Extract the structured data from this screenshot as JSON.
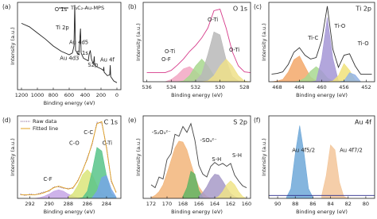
{
  "chart_data": [
    {
      "type": "line",
      "label": "(a)",
      "xlabel": "Binding energy (eV)",
      "ylabel": "Intensity (a.u.)",
      "legend": "upper right",
      "x": [
        1200,
        1100,
        1000,
        900,
        800,
        700,
        600,
        560,
        540,
        530,
        520,
        480,
        465,
        458,
        450,
        420,
        360,
        350,
        335,
        320,
        300,
        290,
        285,
        280,
        250,
        200,
        170,
        165,
        160,
        120,
        90,
        84,
        78,
        40,
        0
      ],
      "xlim": [
        1250,
        -50
      ],
      "xticks": [
        1200,
        1000,
        800,
        600,
        400,
        200,
        0
      ],
      "ylim": [
        0,
        100
      ],
      "series": [
        {
          "name": "Ti₃C₂-Au-MPS",
          "color": "#222222",
          "values": [
            76,
            72,
            65,
            58,
            50,
            44,
            40,
            42,
            50,
            97,
            45,
            40,
            60,
            70,
            42,
            36,
            33,
            40,
            45,
            35,
            30,
            33,
            38,
            28,
            26,
            24,
            22,
            26,
            20,
            16,
            17,
            28,
            15,
            10,
            8
          ]
        }
      ],
      "annotations": [
        "O 1s",
        "Ti 2p",
        "Au 4d5",
        "Au 4d3",
        "C 1s",
        "S2p",
        "Au 4f"
      ]
    },
    {
      "type": "line",
      "label": "(b)",
      "title": "O 1s",
      "xlabel": "Binding energy (eV)",
      "ylabel": "Intensity (a.u.)",
      "x": [
        536,
        535.5,
        535,
        534.5,
        534,
        533.5,
        533,
        532.5,
        532,
        531.5,
        531,
        530.5,
        530,
        529.5,
        529,
        528.5,
        528,
        527.5
      ],
      "xlim": [
        536.3,
        527.5
      ],
      "xticks": [
        536,
        534,
        532,
        530,
        528
      ],
      "ylim": [
        0,
        105
      ],
      "series": [
        {
          "color": "#f2a7c3",
          "fill": true,
          "values": [
            null,
            null,
            null,
            0,
            3,
            9,
            17,
            20,
            14,
            6,
            1,
            0,
            null,
            null,
            null,
            null,
            null,
            null
          ]
        },
        {
          "color": "#a8d88e",
          "fill": true,
          "values": [
            null,
            null,
            null,
            null,
            null,
            0,
            1,
            8,
            21,
            30,
            21,
            8,
            1,
            0,
            null,
            null,
            null,
            null
          ]
        },
        {
          "color": "#b8b8b8",
          "fill": true,
          "values": [
            null,
            null,
            null,
            null,
            null,
            null,
            null,
            0,
            1,
            10,
            36,
            66,
            62,
            29,
            7,
            1,
            0,
            null
          ]
        },
        {
          "color": "#efe08a",
          "fill": true,
          "values": [
            null,
            null,
            null,
            null,
            null,
            null,
            null,
            null,
            null,
            0,
            1,
            8,
            21,
            30,
            21,
            8,
            1,
            0
          ]
        },
        {
          "color": "#d63a8a",
          "values": [
            12,
            12,
            12,
            12,
            15,
            22,
            30,
            40,
            48,
            58,
            71,
            94,
            96,
            71,
            40,
            21,
            13,
            12
          ]
        }
      ],
      "annotations": [
        "O-Ti",
        "O-Ti",
        "O-Ti",
        "O-F"
      ]
    },
    {
      "type": "line",
      "label": "(c)",
      "title": "Ti 2p",
      "xlabel": "Binding energy (eV)",
      "ylabel": "Intensity (a.u.)",
      "x": [
        469,
        468,
        467,
        466,
        465,
        464,
        463,
        462,
        461,
        460,
        459,
        458,
        457,
        456,
        455,
        454,
        453,
        452,
        451
      ],
      "xlim": [
        469.5,
        450.5
      ],
      "xticks": [
        468,
        464,
        460,
        456,
        452
      ],
      "ylim": [
        0,
        105
      ],
      "series": [
        {
          "color": "#f3a86a",
          "fill": true,
          "values": [
            0,
            1,
            3,
            13,
            29,
            34,
            20,
            6,
            1,
            0,
            null,
            null,
            null,
            null,
            null,
            null,
            null,
            null,
            null
          ]
        },
        {
          "color": "#a8d890",
          "fill": true,
          "values": [
            null,
            null,
            null,
            null,
            0,
            1,
            5,
            14,
            20,
            14,
            5,
            1,
            0,
            null,
            null,
            null,
            null,
            null,
            null
          ]
        },
        {
          "color": "#a497d6",
          "fill": true,
          "values": [
            null,
            null,
            null,
            null,
            null,
            null,
            null,
            0,
            1,
            31,
            85,
            31,
            1,
            0,
            null,
            null,
            null,
            null,
            null
          ]
        },
        {
          "color": "#f0e27a",
          "fill": true,
          "values": [
            null,
            null,
            null,
            null,
            null,
            null,
            null,
            null,
            null,
            null,
            0,
            1,
            8,
            24,
            15,
            2,
            0,
            null,
            null
          ]
        },
        {
          "color": "#93b4e4",
          "fill": true,
          "values": [
            null,
            null,
            null,
            null,
            null,
            null,
            null,
            null,
            null,
            null,
            null,
            null,
            0,
            1,
            12,
            9,
            0,
            null,
            null
          ]
        },
        {
          "color": "#333333",
          "values": [
            10,
            11,
            13,
            23,
            39,
            45,
            35,
            30,
            32,
            55,
            100,
            43,
            19,
            35,
            37,
            21,
            10,
            10,
            10
          ]
        }
      ],
      "annotations": [
        "Ti-O",
        "Ti-C",
        "Ti-O"
      ]
    },
    {
      "type": "line",
      "label": "(d)",
      "title": "C 1s",
      "xlabel": "Binding energy (eV)",
      "ylabel": "Intensity (a.u.)",
      "legend": "upper left",
      "x": [
        293,
        292.5,
        292,
        291.5,
        291,
        290.5,
        290,
        289.5,
        289,
        288.5,
        288,
        287.5,
        287,
        286.5,
        286,
        285.5,
        285,
        284.5,
        284,
        283.5,
        283
      ],
      "xlim": [
        293.3,
        282.5
      ],
      "xticks": [
        292,
        290,
        288,
        286,
        284
      ],
      "ylim": [
        0,
        115
      ],
      "series": [
        {
          "color": "#c6a6e6",
          "fill": true,
          "values": [
            null,
            null,
            null,
            0,
            1,
            3,
            6,
            10,
            12,
            10,
            6,
            3,
            1,
            0,
            null,
            null,
            null,
            null,
            null,
            null,
            null
          ]
        },
        {
          "color": "#dbe57a",
          "fill": true,
          "values": [
            null,
            null,
            null,
            null,
            null,
            null,
            null,
            null,
            null,
            null,
            2,
            7,
            18,
            33,
            40,
            33,
            18,
            7,
            2,
            0,
            null
          ]
        },
        {
          "color": "#58c48a",
          "fill": true,
          "values": [
            null,
            null,
            null,
            null,
            null,
            null,
            null,
            null,
            null,
            null,
            null,
            null,
            0,
            1,
            10,
            38,
            71,
            66,
            31,
            7,
            1
          ]
        },
        {
          "color": "#76a6e6",
          "fill": true,
          "values": [
            null,
            null,
            null,
            null,
            null,
            null,
            null,
            null,
            null,
            null,
            null,
            null,
            null,
            null,
            null,
            1,
            10,
            29,
            32,
            13,
            2
          ]
        },
        {
          "name": "Raw data",
          "color": "#6a3d7a",
          "dash": "dotted",
          "values": [
            6,
            4,
            6,
            5,
            7,
            9,
            10,
            16,
            16,
            14,
            14,
            14,
            25,
            38,
            57,
            75,
            106,
            105,
            72,
            23,
            9
          ]
        },
        {
          "name": "Fitted line",
          "color": "#e0a020",
          "values": [
            5,
            5,
            5,
            5,
            6,
            8,
            11,
            15,
            17,
            15,
            13,
            15,
            24,
            39,
            55,
            77,
            104,
            107,
            70,
            25,
            8
          ]
        }
      ],
      "annotations": [
        "C-F",
        "C-O",
        "C-C",
        "C-Ti"
      ]
    },
    {
      "type": "line",
      "label": "(e)",
      "title": "S 2p",
      "xlabel": "Binding energy (eV)",
      "ylabel": "Intensity (a.u.)",
      "x": [
        172,
        171.5,
        171,
        170.5,
        170,
        169.5,
        169,
        168.5,
        168,
        167.5,
        167,
        166.5,
        166,
        165.5,
        165,
        164.5,
        164,
        163.5,
        163,
        162.5,
        162,
        161.5,
        161,
        160.5,
        160
      ],
      "xlim": [
        173,
        159.5
      ],
      "xticks": [
        172,
        170,
        168,
        166,
        164,
        162,
        160
      ],
      "ylim": [
        0,
        85
      ],
      "series": [
        {
          "color": "#f2b57a",
          "fill": true,
          "values": [
            1,
            3,
            7,
            14,
            26,
            39,
            52,
            59,
            58,
            50,
            36,
            23,
            12,
            6,
            2,
            0,
            null,
            null,
            null,
            null,
            null,
            null,
            null,
            null,
            null
          ]
        },
        {
          "color": "#62b464",
          "fill": true,
          "values": [
            null,
            null,
            null,
            null,
            null,
            null,
            null,
            null,
            2,
            11,
            28,
            25,
            8,
            1,
            0,
            null,
            null,
            null,
            null,
            null,
            null,
            null,
            null,
            null,
            null
          ]
        },
        {
          "color": "#a79ac8",
          "fill": true,
          "values": [
            null,
            null,
            null,
            null,
            null,
            null,
            null,
            null,
            null,
            null,
            null,
            null,
            2,
            6,
            12,
            20,
            25,
            24,
            18,
            11,
            5,
            2,
            0,
            null,
            null
          ]
        },
        {
          "color": "#f0e488",
          "fill": true,
          "values": [
            null,
            null,
            null,
            null,
            null,
            null,
            null,
            null,
            null,
            null,
            null,
            null,
            null,
            null,
            null,
            null,
            0,
            2,
            7,
            14,
            18,
            14,
            7,
            2,
            0
          ]
        },
        {
          "color": "#444444",
          "values": [
            14,
            11,
            22,
            20,
            40,
            46,
            66,
            64,
            74,
            68,
            77,
            60,
            34,
            25,
            22,
            33,
            37,
            34,
            36,
            33,
            36,
            24,
            18,
            13,
            11
          ]
        }
      ],
      "annotations": [
        "-S₂O₃²⁻",
        "-SO₄²⁻",
        "S-H",
        "S-H"
      ]
    },
    {
      "type": "line",
      "label": "(f)",
      "title": "Au 4f",
      "xlabel": "Binding energy (eV)",
      "ylabel": "Intensity (a.u.)",
      "x": [
        91,
        90.5,
        90,
        89.5,
        89,
        88.5,
        88,
        87.5,
        87,
        86.5,
        86,
        85.5,
        85,
        84.5,
        84,
        83.5,
        83,
        82.5,
        82,
        81.5,
        81,
        80.5,
        80,
        79.5,
        79
      ],
      "xlim": [
        91,
        79
      ],
      "xticks": [
        90,
        88,
        86,
        84,
        82,
        80
      ],
      "ylim": [
        0,
        85
      ],
      "series": [
        {
          "color": "#6fa8d8",
          "fill": true,
          "values": [
            null,
            null,
            null,
            null,
            1,
            10,
            46,
            75,
            46,
            10,
            1,
            null,
            null,
            null,
            null,
            null,
            null,
            null,
            null,
            null,
            null,
            null,
            null,
            null,
            null
          ]
        },
        {
          "color": "#f3c69a",
          "fill": true,
          "values": [
            null,
            null,
            null,
            null,
            null,
            null,
            null,
            null,
            null,
            null,
            null,
            null,
            3,
            23,
            55,
            50,
            17,
            2,
            0,
            null,
            null,
            null,
            null,
            null,
            null
          ]
        },
        {
          "color": "#2a2a8a",
          "values": [
            3,
            3,
            3,
            3,
            3,
            3,
            3,
            3,
            3,
            3,
            3,
            3,
            3,
            3,
            3,
            3,
            3,
            3,
            3,
            3,
            3,
            3,
            3,
            3,
            3
          ]
        }
      ],
      "annotations": [
        "Au 4f5/2",
        "Au 4f7/2"
      ]
    }
  ]
}
